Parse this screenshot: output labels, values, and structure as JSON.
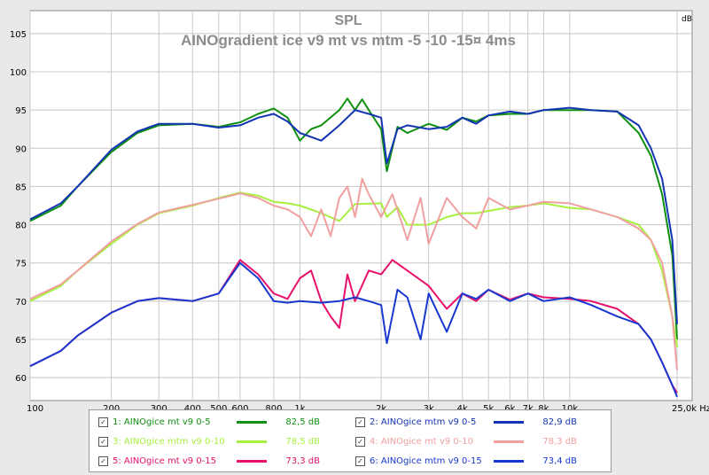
{
  "chart_data": {
    "type": "line",
    "title": "SPL",
    "subtitle": "AINOgradient ice v9 mt vs mtm  -5 -10 -15¤ 4ms",
    "x_scale": "log",
    "xlim": [
      100,
      25000
    ],
    "ylim": [
      57,
      108
    ],
    "y_ticks": [
      60,
      65,
      70,
      75,
      80,
      85,
      90,
      95,
      100,
      105
    ],
    "y_unit": "dB",
    "x_unit": "Hz",
    "x_ticks": [
      {
        "v": 100,
        "label": "100"
      },
      {
        "v": 200,
        "label": "200"
      },
      {
        "v": 300,
        "label": "300"
      },
      {
        "v": 400,
        "label": "400"
      },
      {
        "v": 500,
        "label": "500"
      },
      {
        "v": 600,
        "label": "600"
      },
      {
        "v": 800,
        "label": "800"
      },
      {
        "v": 1000,
        "label": "1k"
      },
      {
        "v": 2000,
        "label": "2k"
      },
      {
        "v": 3000,
        "label": "3k"
      },
      {
        "v": 4000,
        "label": "4k"
      },
      {
        "v": 5000,
        "label": "5k"
      },
      {
        "v": 6000,
        "label": "6k"
      },
      {
        "v": 7000,
        "label": "7k"
      },
      {
        "v": 8000,
        "label": "8k"
      },
      {
        "v": 10000,
        "label": "10k"
      },
      {
        "v": 25000,
        "label": "25,0k Hz"
      }
    ],
    "grid": true,
    "legend_position": "bottom",
    "series": [
      {
        "name": "1: AINOgice mt v9 0-5",
        "value": "82,5 dB",
        "color": "#109010",
        "points": [
          [
            100,
            80.5
          ],
          [
            130,
            82.5
          ],
          [
            150,
            85
          ],
          [
            200,
            89.5
          ],
          [
            250,
            92
          ],
          [
            300,
            93
          ],
          [
            400,
            93.2
          ],
          [
            500,
            92.8
          ],
          [
            600,
            93.4
          ],
          [
            700,
            94.5
          ],
          [
            800,
            95.2
          ],
          [
            900,
            94
          ],
          [
            1000,
            91
          ],
          [
            1100,
            92.5
          ],
          [
            1200,
            93
          ],
          [
            1400,
            95
          ],
          [
            1500,
            96.5
          ],
          [
            1600,
            95
          ],
          [
            1700,
            96.4
          ],
          [
            1800,
            95
          ],
          [
            2000,
            92.5
          ],
          [
            2100,
            87
          ],
          [
            2300,
            92.8
          ],
          [
            2500,
            92
          ],
          [
            3000,
            93.2
          ],
          [
            3500,
            92.4
          ],
          [
            4000,
            94
          ],
          [
            4500,
            93.5
          ],
          [
            5000,
            94.3
          ],
          [
            6000,
            94.5
          ],
          [
            7000,
            94.5
          ],
          [
            8000,
            95
          ],
          [
            10000,
            95
          ],
          [
            12000,
            95
          ],
          [
            15000,
            94.8
          ],
          [
            18000,
            92
          ],
          [
            20000,
            89
          ],
          [
            22000,
            84
          ],
          [
            24000,
            76
          ],
          [
            25000,
            65
          ]
        ]
      },
      {
        "name": "2: AINOgice mtm v9 0-5",
        "value": "82,9 dB",
        "color": "#1434b4",
        "points": [
          [
            100,
            80.7
          ],
          [
            130,
            82.8
          ],
          [
            150,
            85
          ],
          [
            200,
            89.8
          ],
          [
            250,
            92.2
          ],
          [
            300,
            93.2
          ],
          [
            400,
            93.2
          ],
          [
            500,
            92.7
          ],
          [
            600,
            93
          ],
          [
            700,
            94
          ],
          [
            800,
            94.5
          ],
          [
            900,
            93.5
          ],
          [
            1000,
            92
          ],
          [
            1200,
            91
          ],
          [
            1400,
            93
          ],
          [
            1600,
            95
          ],
          [
            1800,
            94.5
          ],
          [
            2000,
            94
          ],
          [
            2100,
            88
          ],
          [
            2300,
            92.5
          ],
          [
            2500,
            93
          ],
          [
            3000,
            92.5
          ],
          [
            3500,
            92.8
          ],
          [
            4000,
            94
          ],
          [
            4500,
            93.2
          ],
          [
            5000,
            94.3
          ],
          [
            6000,
            94.8
          ],
          [
            7000,
            94.5
          ],
          [
            8000,
            95
          ],
          [
            10000,
            95.3
          ],
          [
            12000,
            95
          ],
          [
            15000,
            94.8
          ],
          [
            18000,
            93
          ],
          [
            20000,
            90
          ],
          [
            22000,
            86
          ],
          [
            24000,
            78
          ],
          [
            25000,
            67
          ]
        ]
      },
      {
        "name": "3: AINOgice mtm v9 0-10",
        "value": "78,5 dB",
        "color": "#a8f040",
        "points": [
          [
            100,
            70
          ],
          [
            130,
            72
          ],
          [
            150,
            74
          ],
          [
            200,
            77.5
          ],
          [
            250,
            80
          ],
          [
            300,
            81.5
          ],
          [
            400,
            82.5
          ],
          [
            500,
            83.5
          ],
          [
            600,
            84.2
          ],
          [
            700,
            83.8
          ],
          [
            800,
            83
          ],
          [
            900,
            82.8
          ],
          [
            1000,
            82.5
          ],
          [
            1200,
            81.5
          ],
          [
            1400,
            80.5
          ],
          [
            1600,
            82.7
          ],
          [
            2000,
            82.8
          ],
          [
            2100,
            81
          ],
          [
            2300,
            82.3
          ],
          [
            2500,
            80
          ],
          [
            3000,
            80
          ],
          [
            3500,
            81
          ],
          [
            4000,
            81.5
          ],
          [
            4500,
            81.5
          ],
          [
            5000,
            81.8
          ],
          [
            6000,
            82.3
          ],
          [
            7000,
            82.5
          ],
          [
            8000,
            82.8
          ],
          [
            10000,
            82.2
          ],
          [
            12000,
            82
          ],
          [
            15000,
            81
          ],
          [
            18000,
            80
          ],
          [
            20000,
            78
          ],
          [
            22000,
            74
          ],
          [
            24000,
            68
          ],
          [
            25000,
            64
          ]
        ]
      },
      {
        "name": "4: AINOgice mt v9 0-10",
        "value": "78,3 dB",
        "color": "#f0a0a0",
        "points": [
          [
            100,
            70.3
          ],
          [
            130,
            72.2
          ],
          [
            150,
            74
          ],
          [
            200,
            77.8
          ],
          [
            250,
            80.1
          ],
          [
            300,
            81.6
          ],
          [
            400,
            82.6
          ],
          [
            500,
            83.4
          ],
          [
            600,
            84.1
          ],
          [
            700,
            83.5
          ],
          [
            800,
            82.5
          ],
          [
            900,
            82
          ],
          [
            1000,
            81
          ],
          [
            1100,
            78.5
          ],
          [
            1200,
            82
          ],
          [
            1300,
            78.5
          ],
          [
            1400,
            83.5
          ],
          [
            1500,
            85
          ],
          [
            1600,
            81
          ],
          [
            1700,
            86
          ],
          [
            1800,
            84
          ],
          [
            2000,
            81
          ],
          [
            2200,
            84
          ],
          [
            2500,
            78
          ],
          [
            2800,
            83.5
          ],
          [
            3000,
            77.5
          ],
          [
            3500,
            83.5
          ],
          [
            4000,
            81
          ],
          [
            4500,
            79.5
          ],
          [
            5000,
            83.5
          ],
          [
            6000,
            82
          ],
          [
            7000,
            82.5
          ],
          [
            8000,
            83
          ],
          [
            10000,
            82.8
          ],
          [
            12000,
            82
          ],
          [
            15000,
            81
          ],
          [
            18000,
            79.5
          ],
          [
            20000,
            78
          ],
          [
            22000,
            75
          ],
          [
            24000,
            68
          ],
          [
            25000,
            61
          ]
        ]
      },
      {
        "name": "5: AINOgice mt v9 0-15",
        "value": "73,3 dB",
        "color": "#e8106a",
        "points": [
          [
            100,
            61.5
          ],
          [
            130,
            63.5
          ],
          [
            150,
            65.5
          ],
          [
            200,
            68.5
          ],
          [
            250,
            70
          ],
          [
            300,
            70.4
          ],
          [
            400,
            70
          ],
          [
            500,
            71
          ],
          [
            600,
            75.4
          ],
          [
            700,
            73.5
          ],
          [
            800,
            71
          ],
          [
            900,
            70.3
          ],
          [
            1000,
            73
          ],
          [
            1100,
            74
          ],
          [
            1200,
            70
          ],
          [
            1300,
            68
          ],
          [
            1400,
            66.5
          ],
          [
            1500,
            73.5
          ],
          [
            1600,
            70
          ],
          [
            1800,
            74
          ],
          [
            2000,
            73.5
          ],
          [
            2200,
            75.4
          ],
          [
            2500,
            74
          ],
          [
            3000,
            72
          ],
          [
            3500,
            69
          ],
          [
            4000,
            71
          ],
          [
            4500,
            70
          ],
          [
            5000,
            71.5
          ],
          [
            6000,
            70.2
          ],
          [
            7000,
            71
          ],
          [
            8000,
            70.5
          ],
          [
            10000,
            70.3
          ],
          [
            12000,
            70
          ],
          [
            15000,
            69
          ],
          [
            18000,
            67
          ],
          [
            20000,
            65
          ],
          [
            22000,
            62
          ],
          [
            24000,
            59
          ],
          [
            25000,
            58
          ]
        ]
      },
      {
        "name": "6: AINOgice mtm v9 0-15",
        "value": "73,4 dB",
        "color": "#1838d0",
        "points": [
          [
            100,
            61.5
          ],
          [
            130,
            63.5
          ],
          [
            150,
            65.5
          ],
          [
            200,
            68.5
          ],
          [
            250,
            70
          ],
          [
            300,
            70.4
          ],
          [
            400,
            70
          ],
          [
            500,
            71
          ],
          [
            600,
            75
          ],
          [
            700,
            73
          ],
          [
            800,
            70
          ],
          [
            900,
            69.8
          ],
          [
            1000,
            70
          ],
          [
            1200,
            69.8
          ],
          [
            1400,
            70
          ],
          [
            1600,
            70.5
          ],
          [
            1800,
            70
          ],
          [
            2000,
            69.5
          ],
          [
            2100,
            64.5
          ],
          [
            2300,
            71.5
          ],
          [
            2500,
            70.5
          ],
          [
            2800,
            65
          ],
          [
            3000,
            71
          ],
          [
            3500,
            66
          ],
          [
            4000,
            71
          ],
          [
            4500,
            70.3
          ],
          [
            5000,
            71.5
          ],
          [
            6000,
            70
          ],
          [
            7000,
            71
          ],
          [
            8000,
            70
          ],
          [
            10000,
            70.5
          ],
          [
            12000,
            69.5
          ],
          [
            15000,
            68
          ],
          [
            18000,
            67
          ],
          [
            20000,
            65
          ],
          [
            22000,
            62
          ],
          [
            24000,
            59
          ],
          [
            25000,
            57.5
          ]
        ]
      }
    ]
  }
}
